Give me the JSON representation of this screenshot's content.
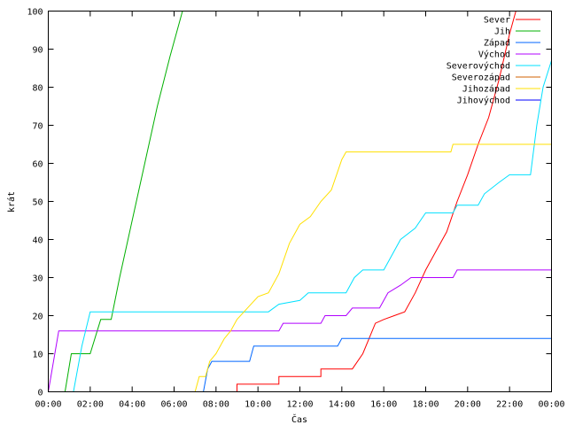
{
  "chart_data": {
    "type": "line",
    "xlabel": "Čas",
    "ylabel": "krát",
    "xlim": [
      0,
      24
    ],
    "ylim": [
      0,
      100
    ],
    "grid": false,
    "legend_position": "top-right",
    "x_ticks": [
      "00:00",
      "02:00",
      "04:00",
      "06:00",
      "08:00",
      "10:00",
      "12:00",
      "14:00",
      "16:00",
      "18:00",
      "20:00",
      "22:00",
      "00:00"
    ],
    "y_ticks": [
      "0",
      "10",
      "20",
      "30",
      "40",
      "50",
      "60",
      "70",
      "80",
      "90",
      "100"
    ],
    "series": [
      {
        "name": "Sever",
        "color": "#ff0000",
        "points": [
          [
            9.0,
            0
          ],
          [
            9.0,
            2
          ],
          [
            11.0,
            2
          ],
          [
            11.0,
            4
          ],
          [
            13.0,
            4
          ],
          [
            13.0,
            6
          ],
          [
            14.5,
            6
          ],
          [
            15.0,
            10
          ],
          [
            15.3,
            14
          ],
          [
            15.6,
            18
          ],
          [
            16.0,
            19
          ],
          [
            16.5,
            20
          ],
          [
            17.0,
            21
          ],
          [
            17.5,
            26
          ],
          [
            18.0,
            32
          ],
          [
            18.5,
            37
          ],
          [
            19.0,
            42
          ],
          [
            19.5,
            50
          ],
          [
            20.0,
            57
          ],
          [
            20.5,
            65
          ],
          [
            21.0,
            72
          ],
          [
            21.5,
            82
          ],
          [
            22.0,
            94
          ],
          [
            22.3,
            100
          ]
        ]
      },
      {
        "name": "Jih",
        "color": "#00b000",
        "points": [
          [
            0.8,
            0
          ],
          [
            1.1,
            10
          ],
          [
            2.0,
            10
          ],
          [
            2.5,
            19
          ],
          [
            3.0,
            19
          ],
          [
            3.4,
            30
          ],
          [
            4.0,
            45
          ],
          [
            4.6,
            60
          ],
          [
            5.2,
            75
          ],
          [
            5.8,
            88
          ],
          [
            6.4,
            100
          ]
        ]
      },
      {
        "name": "Západ",
        "color": "#0066ff",
        "points": [
          [
            7.4,
            0
          ],
          [
            7.6,
            6
          ],
          [
            7.8,
            8
          ],
          [
            9.6,
            8
          ],
          [
            9.8,
            12
          ],
          [
            13.8,
            12
          ],
          [
            14.0,
            14
          ],
          [
            24.0,
            14
          ]
        ]
      },
      {
        "name": "Východ",
        "color": "#b000ff",
        "points": [
          [
            0.0,
            0
          ],
          [
            0.5,
            16
          ],
          [
            11.0,
            16
          ],
          [
            11.2,
            18
          ],
          [
            13.0,
            18
          ],
          [
            13.2,
            20
          ],
          [
            14.2,
            20
          ],
          [
            14.5,
            22
          ],
          [
            15.8,
            22
          ],
          [
            16.2,
            26
          ],
          [
            16.8,
            28
          ],
          [
            17.3,
            30
          ],
          [
            19.3,
            30
          ],
          [
            19.5,
            32
          ],
          [
            24.0,
            32
          ]
        ]
      },
      {
        "name": "Severovýchod",
        "color": "#00e0ff",
        "points": [
          [
            1.2,
            0
          ],
          [
            1.6,
            12
          ],
          [
            2.0,
            21
          ],
          [
            10.5,
            21
          ],
          [
            11.0,
            23
          ],
          [
            12.0,
            24
          ],
          [
            12.4,
            26
          ],
          [
            14.2,
            26
          ],
          [
            14.6,
            30
          ],
          [
            15.0,
            32
          ],
          [
            16.0,
            32
          ],
          [
            16.3,
            35
          ],
          [
            16.8,
            40
          ],
          [
            17.5,
            43
          ],
          [
            18.0,
            47
          ],
          [
            19.3,
            47
          ],
          [
            19.5,
            49
          ],
          [
            20.5,
            49
          ],
          [
            20.8,
            52
          ],
          [
            21.5,
            55
          ],
          [
            22.0,
            57
          ],
          [
            23.0,
            57
          ],
          [
            23.3,
            70
          ],
          [
            23.6,
            80
          ],
          [
            24.0,
            87
          ]
        ]
      },
      {
        "name": "Severozápad",
        "color": "#d06000",
        "points": []
      },
      {
        "name": "Jihozápad",
        "color": "#ffe000",
        "points": [
          [
            7.0,
            0
          ],
          [
            7.2,
            4
          ],
          [
            7.5,
            4
          ],
          [
            7.7,
            8
          ],
          [
            8.0,
            10
          ],
          [
            8.4,
            14
          ],
          [
            8.7,
            16
          ],
          [
            9.0,
            19
          ],
          [
            9.5,
            22
          ],
          [
            10.0,
            25
          ],
          [
            10.5,
            26
          ],
          [
            11.0,
            31
          ],
          [
            11.5,
            39
          ],
          [
            12.0,
            44
          ],
          [
            12.5,
            46
          ],
          [
            13.0,
            50
          ],
          [
            13.5,
            53
          ],
          [
            14.0,
            61
          ],
          [
            14.2,
            63
          ],
          [
            19.2,
            63
          ],
          [
            19.3,
            65
          ],
          [
            24.0,
            65
          ]
        ]
      },
      {
        "name": "Jihovýchod",
        "color": "#0000ff",
        "points": []
      }
    ]
  }
}
